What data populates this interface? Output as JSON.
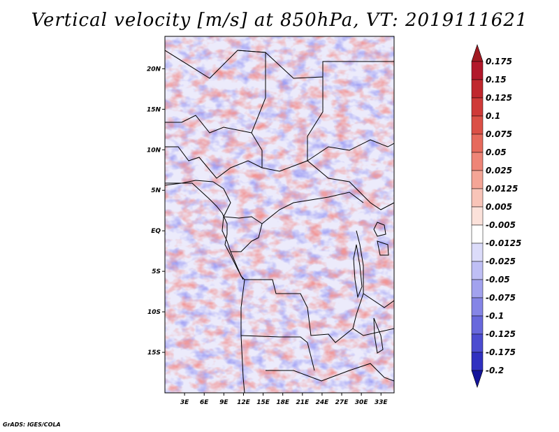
{
  "title": "Vertical velocity [m/s] at 850hPa, VT: 2019111621",
  "credit": "GrADS: IGES/COLA",
  "map": {
    "lon_range": [
      0,
      35
    ],
    "lat_range": [
      -20,
      24
    ],
    "x_ticks": [
      {
        "lon": 3,
        "label": "3E"
      },
      {
        "lon": 6,
        "label": "6E"
      },
      {
        "lon": 9,
        "label": "9E"
      },
      {
        "lon": 12,
        "label": "12E"
      },
      {
        "lon": 15,
        "label": "15E"
      },
      {
        "lon": 18,
        "label": "18E"
      },
      {
        "lon": 21,
        "label": "21E"
      },
      {
        "lon": 24,
        "label": "24E"
      },
      {
        "lon": 27,
        "label": "27E"
      },
      {
        "lon": 30,
        "label": "30E"
      },
      {
        "lon": 33,
        "label": "33E"
      }
    ],
    "y_ticks": [
      {
        "lat": 20,
        "label": "20N"
      },
      {
        "lat": 15,
        "label": "15N"
      },
      {
        "lat": 10,
        "label": "10N"
      },
      {
        "lat": 5,
        "label": "5N"
      },
      {
        "lat": 0,
        "label": "EQ"
      },
      {
        "lat": -5,
        "label": "5S"
      },
      {
        "lat": -10,
        "label": "10S"
      },
      {
        "lat": -15,
        "label": "15S"
      }
    ]
  },
  "colorbar": {
    "levels": [
      {
        "label": "0.175",
        "color": "#b2182b"
      },
      {
        "label": "0.15",
        "color": "#c0282e"
      },
      {
        "label": "0.125",
        "color": "#cf3a38"
      },
      {
        "label": "0.1",
        "color": "#db5046"
      },
      {
        "label": "0.075",
        "color": "#e66a5c"
      },
      {
        "label": "0.05",
        "color": "#ee8577"
      },
      {
        "label": "0.025",
        "color": "#f4a596"
      },
      {
        "label": "0.0125",
        "color": "#f8c4b8"
      },
      {
        "label": "0.005",
        "color": "#fbe1da"
      },
      {
        "label": "-0.005",
        "color": "#ffffff"
      },
      {
        "label": "-0.0125",
        "color": "#dcdcfa"
      },
      {
        "label": "-0.025",
        "color": "#bfbff5"
      },
      {
        "label": "-0.05",
        "color": "#a2a2ee"
      },
      {
        "label": "-0.075",
        "color": "#8585e6"
      },
      {
        "label": "-0.1",
        "color": "#6868dc"
      },
      {
        "label": "-0.125",
        "color": "#4c4cd0"
      },
      {
        "label": "-0.175",
        "color": "#3030c0"
      },
      {
        "label": "-0.2",
        "color": "#1e1eac"
      }
    ],
    "top_color": "#a11a22",
    "bottom_color": "#14149a"
  }
}
